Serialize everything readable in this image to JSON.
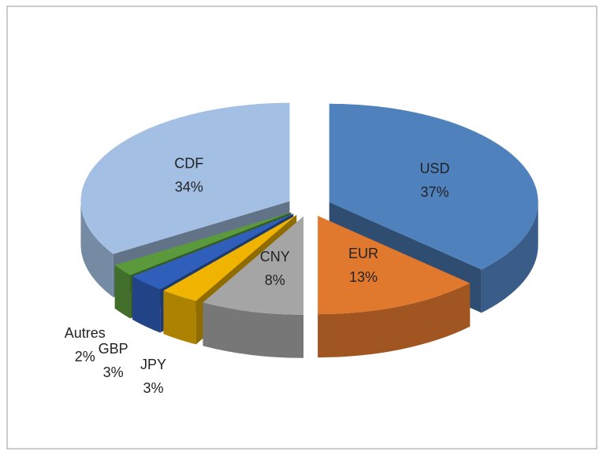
{
  "chart_data": {
    "type": "pie3d",
    "categories": [
      "USD",
      "EUR",
      "CNY",
      "JPY",
      "GBP",
      "Autres",
      "CDF"
    ],
    "values": [
      37,
      13,
      8,
      3,
      3,
      2,
      34
    ],
    "value_labels": [
      "37%",
      "13%",
      "8%",
      "3%",
      "3%",
      "2%",
      "34%"
    ],
    "colors": [
      "#4f81bd",
      "#e0782e",
      "#a5a5a5",
      "#f0b400",
      "#2f5fba",
      "#5a9a3c",
      "#a3bfe3"
    ]
  }
}
